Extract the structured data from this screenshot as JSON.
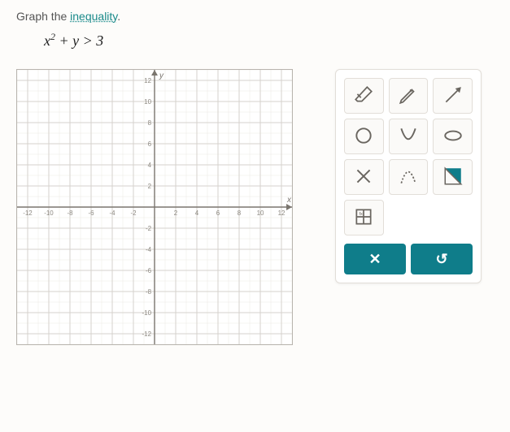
{
  "prompt": {
    "prefix": "Graph the ",
    "link": "inequality",
    "suffix": "."
  },
  "equation_html": "x<sup>2</sup> + y > 3",
  "graph": {
    "type": "cartesian-grid",
    "xlim": [
      -13,
      13
    ],
    "ylim": [
      -13,
      13
    ],
    "major_step": 2,
    "minor_step": 1,
    "x_ticks": [
      -12,
      -10,
      -8,
      -6,
      -4,
      -2,
      2,
      4,
      6,
      8,
      10,
      12
    ],
    "y_ticks": [
      -12,
      -10,
      -8,
      -6,
      -4,
      -2,
      2,
      4,
      6,
      8,
      10,
      12
    ],
    "axis_labels": {
      "x": "x",
      "y": "y"
    },
    "background_color": "#ffffff",
    "major_grid_color": "#d6d2cc",
    "minor_grid_color": "#ece9e4",
    "axis_color": "#7a756e",
    "tick_label_color": "#8c8880",
    "tick_fontsize": 8
  },
  "tools": {
    "items": [
      {
        "name": "eraser-icon"
      },
      {
        "name": "pencil-icon"
      },
      {
        "name": "line-icon"
      },
      {
        "name": "circle-icon"
      },
      {
        "name": "parabola-icon"
      },
      {
        "name": "ellipse-icon"
      },
      {
        "name": "x-mark-icon"
      },
      {
        "name": "dashed-parabola-icon"
      },
      {
        "name": "fill-region-icon"
      },
      {
        "name": "table-icon"
      }
    ],
    "tool_bg": "#fbfaf8",
    "tool_border": "#e2ded8",
    "icon_color": "#6a6660",
    "accent_color": "#0f7d8a"
  },
  "actions": {
    "close_label": "✕",
    "undo_label": "↺",
    "button_bg": "#0f7d8a",
    "button_fg": "#ffffff"
  }
}
